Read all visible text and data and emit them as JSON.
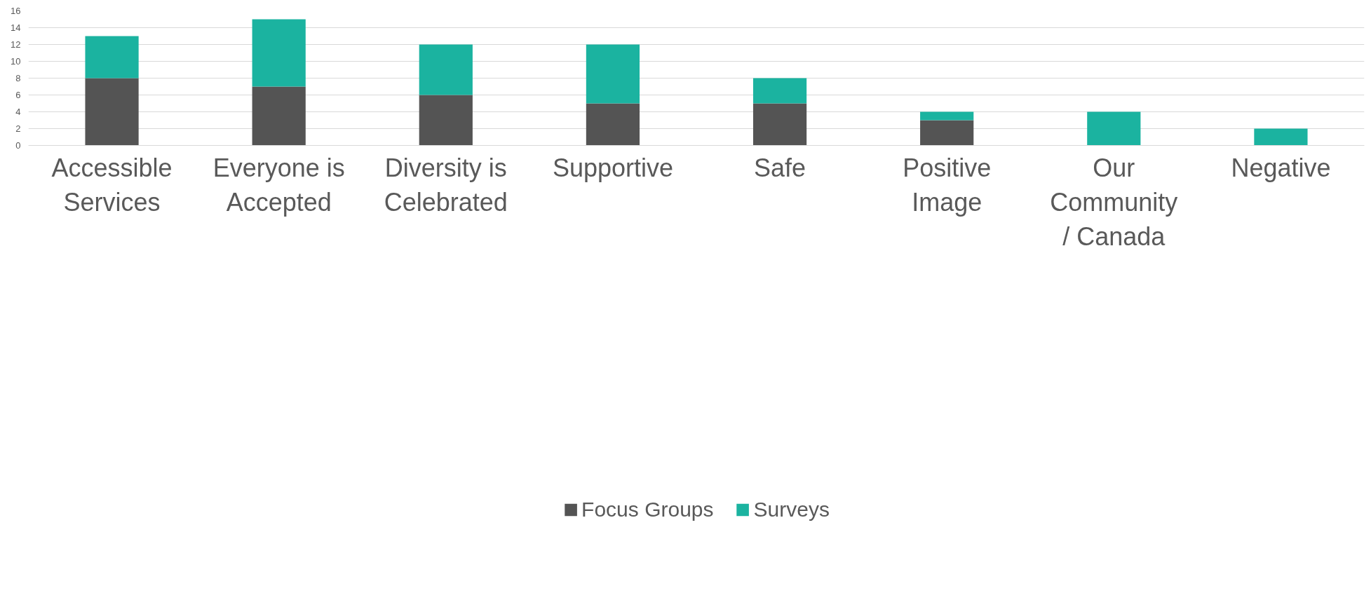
{
  "chart_data": {
    "type": "bar",
    "stacked": true,
    "categories": [
      "Accessible\nServices",
      "Everyone is\nAccepted",
      "Diversity is\nCelebrated",
      "Supportive",
      "Safe",
      "Positive\nImage",
      "Our\nCommunity\n/ Canada",
      "Negative"
    ],
    "series": [
      {
        "name": "Focus Groups",
        "color": "#545454",
        "values": [
          8,
          7,
          6,
          5,
          5,
          3,
          0,
          0
        ]
      },
      {
        "name": "Surveys",
        "color": "#1bb3a0",
        "values": [
          5,
          8,
          6,
          7,
          3,
          1,
          4,
          2
        ]
      }
    ],
    "ylim": [
      0,
      16
    ],
    "yticks": [
      0,
      2,
      4,
      6,
      8,
      10,
      12,
      14,
      16
    ],
    "grid": "y",
    "legend": "bottom"
  }
}
